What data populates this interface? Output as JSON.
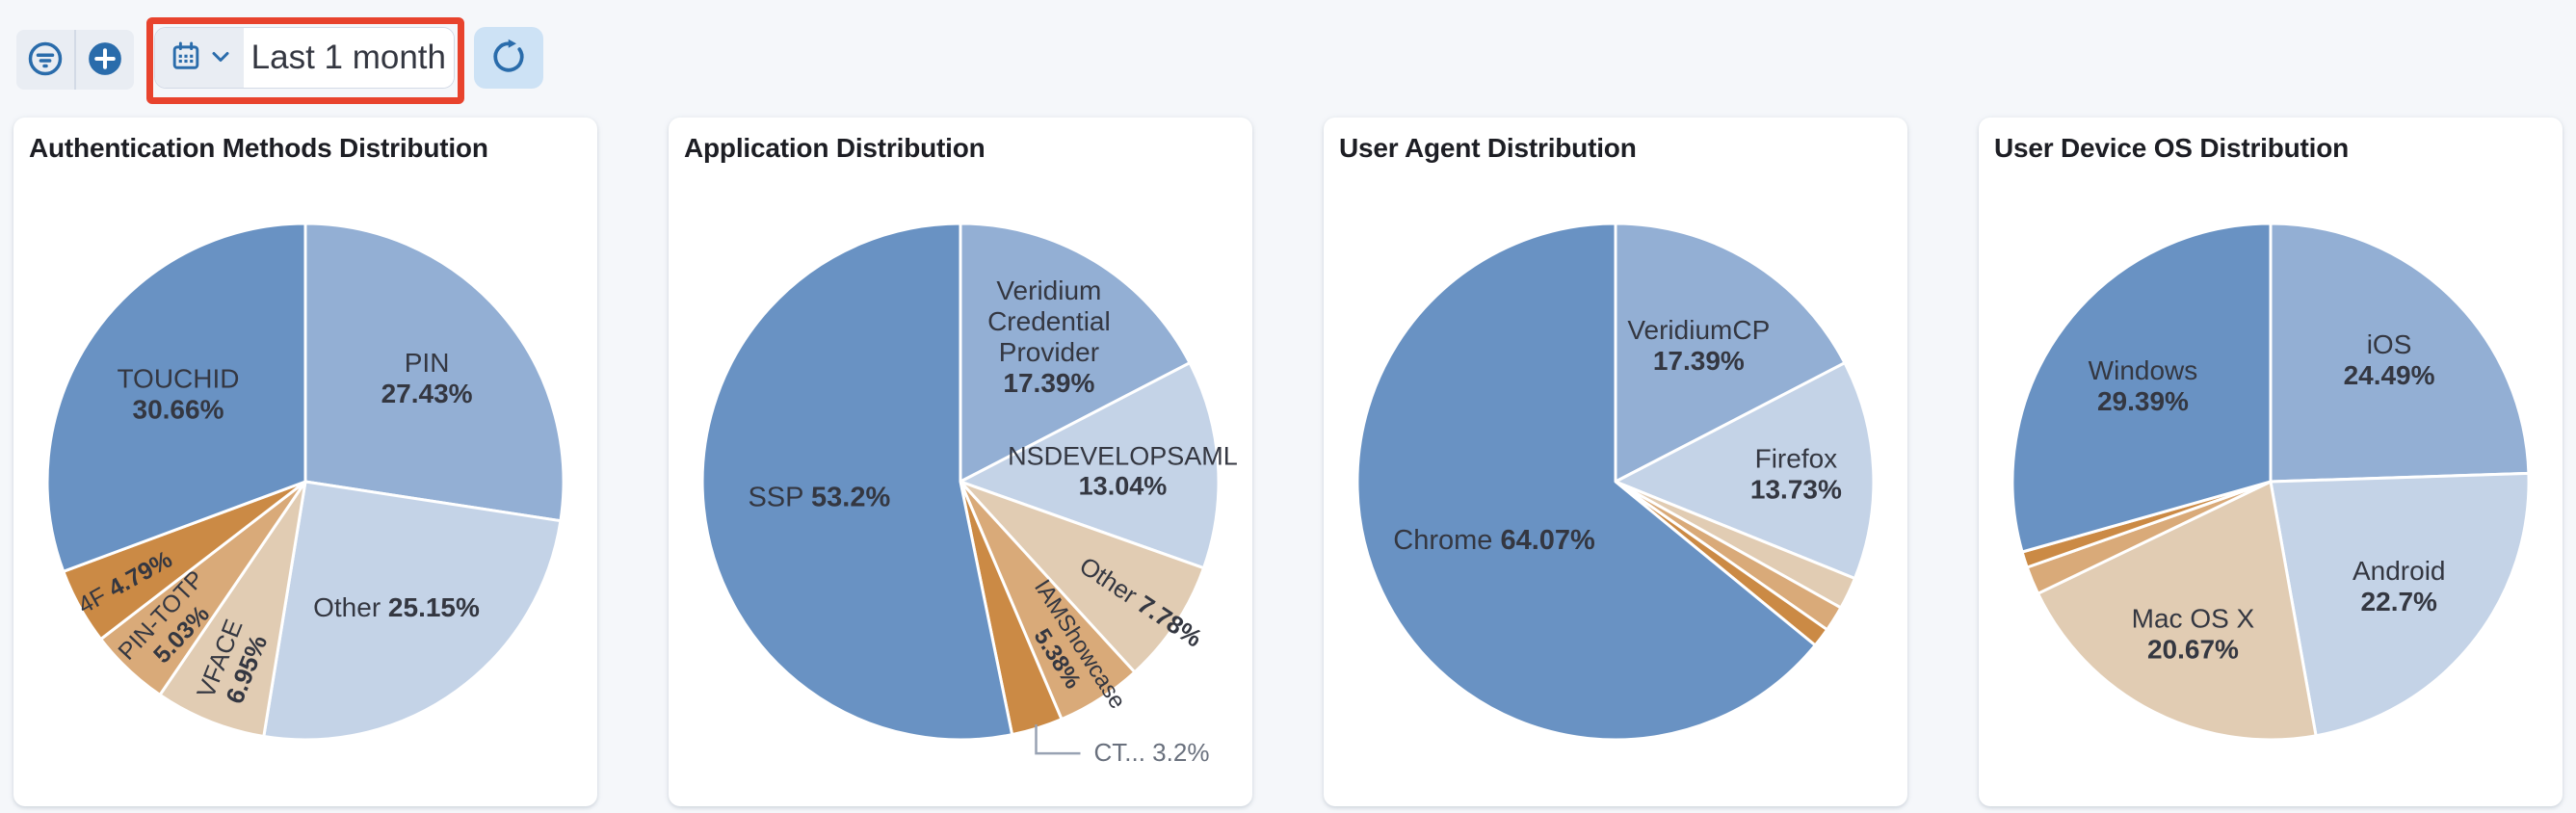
{
  "page": {
    "background": "#f5f7fa",
    "accent_blue": "#2a6cab",
    "annotation_color": "#e8432d"
  },
  "toolbar": {
    "filter_button": {
      "icon": "filter-circle-icon"
    },
    "add_filter_button": {
      "icon": "plus-circle-icon"
    },
    "date_picker": {
      "quick_select_icon": "calendar-icon",
      "chevron_icon": "chevron-down-icon",
      "value": "Last 1 month"
    },
    "refresh_button": {
      "icon": "refresh-icon"
    }
  },
  "chart_data": [
    {
      "type": "pie",
      "title": "Authentication Methods Distribution",
      "legend": false,
      "start_angle_deg": 0,
      "direction": "clockwise",
      "slices": [
        {
          "name": "PIN",
          "value": 27.43,
          "display": "27.43%",
          "color": "#93afd4",
          "label": {
            "mode": "inside",
            "rFrac": 0.62,
            "stacked": true,
            "rotate": false,
            "fontSize": 28
          }
        },
        {
          "name": "Other",
          "value": 25.15,
          "display": "25.15%",
          "color": "#c4d3e7",
          "label": {
            "mode": "inside",
            "rFrac": 0.6,
            "stacked": false,
            "rotate": false,
            "fontSize": 28
          }
        },
        {
          "name": "VFACE",
          "value": 6.95,
          "display": "6.95%",
          "color": "#e1ccb3",
          "label": {
            "mode": "inside",
            "rFrac": 0.76,
            "stacked": true,
            "rotate": true,
            "fontSize": 26
          }
        },
        {
          "name": "PIN-TOTP",
          "value": 5.03,
          "display": "5.03%",
          "color": "#d9aa79",
          "label": {
            "mode": "inside",
            "rFrac": 0.76,
            "stacked": true,
            "rotate": true,
            "fontSize": 25
          }
        },
        {
          "name": "4F",
          "value": 4.79,
          "display": "4.79%",
          "color": "#cb8a45",
          "label": {
            "mode": "inside",
            "rFrac": 0.8,
            "stacked": false,
            "rotate": true,
            "fontSize": 25
          }
        },
        {
          "name": "TOUCHID",
          "value": 30.66,
          "display": "30.66%",
          "color": "#6992c3",
          "label": {
            "mode": "inside",
            "rFrac": 0.6,
            "stacked": true,
            "rotate": false,
            "fontSize": 28
          }
        }
      ]
    },
    {
      "type": "pie",
      "title": "Application Distribution",
      "legend": false,
      "start_angle_deg": 0,
      "direction": "clockwise",
      "slices": [
        {
          "name": "Veridium Credential Provider",
          "lines": [
            "Veridium",
            "Credential",
            "Provider"
          ],
          "value": 17.39,
          "display": "17.39%",
          "color": "#93afd4",
          "label": {
            "mode": "inside",
            "rFrac": 0.66,
            "stacked": true,
            "rotate": false,
            "fontSize": 28
          }
        },
        {
          "name": "NSDEVELOPSAML",
          "value": 13.04,
          "display": "13.04%",
          "color": "#c4d3e7",
          "label": {
            "mode": "inside",
            "rFrac": 0.63,
            "stacked": true,
            "rotate": false,
            "fontSize": 27
          }
        },
        {
          "name": "Other",
          "value": 7.78,
          "display": "7.78%",
          "color": "#e1ccb3",
          "label": {
            "mode": "inside",
            "rFrac": 0.84,
            "stacked": false,
            "rotate": true,
            "fontSize": 26
          }
        },
        {
          "name": "IAMShowcase",
          "value": 5.38,
          "display": "5.38%",
          "color": "#d9aa79",
          "label": {
            "mode": "inside",
            "rFrac": 0.78,
            "stacked": true,
            "rotate": true,
            "fontSize": 24
          }
        },
        {
          "name": "CT...",
          "value": 3.2,
          "display": "3.2%",
          "color": "#cb8a45",
          "label": {
            "mode": "outside",
            "fontSize": 26
          }
        },
        {
          "name": "SSP",
          "value": 53.2,
          "display": "53.2%",
          "color": "#6992c3",
          "label": {
            "mode": "inside",
            "rFrac": 0.55,
            "stacked": false,
            "rotate": false,
            "fontSize": 29
          }
        }
      ]
    },
    {
      "type": "pie",
      "title": "User Agent Distribution",
      "legend": false,
      "start_angle_deg": 0,
      "direction": "clockwise",
      "slices": [
        {
          "name": "VeridiumCP",
          "value": 17.39,
          "display": "17.39%",
          "color": "#93afd4",
          "label": {
            "mode": "inside",
            "rFrac": 0.62,
            "stacked": true,
            "rotate": false,
            "fontSize": 28
          }
        },
        {
          "name": "Firefox",
          "value": 13.73,
          "display": "13.73%",
          "color": "#c4d3e7",
          "label": {
            "mode": "inside",
            "rFrac": 0.7,
            "stacked": true,
            "rotate": false,
            "fontSize": 28
          }
        },
        {
          "name": "",
          "value": 2.0,
          "display": "",
          "color": "#e1ccb3",
          "label": {
            "mode": "none"
          }
        },
        {
          "name": "",
          "value": 1.6,
          "display": "",
          "color": "#d9aa79",
          "label": {
            "mode": "none"
          }
        },
        {
          "name": "",
          "value": 1.21,
          "display": "",
          "color": "#cb8a45",
          "label": {
            "mode": "none"
          }
        },
        {
          "name": "Chrome",
          "value": 64.07,
          "display": "64.07%",
          "color": "#6992c3",
          "label": {
            "mode": "inside",
            "rFrac": 0.52,
            "stacked": false,
            "rotate": false,
            "fontSize": 29
          }
        }
      ]
    },
    {
      "type": "pie",
      "title": "User Device OS Distribution",
      "legend": false,
      "start_angle_deg": 0,
      "direction": "clockwise",
      "slices": [
        {
          "name": "iOS",
          "value": 24.49,
          "display": "24.49%",
          "color": "#93afd4",
          "label": {
            "mode": "inside",
            "rFrac": 0.66,
            "stacked": true,
            "rotate": false,
            "fontSize": 28
          }
        },
        {
          "name": "Android",
          "value": 22.7,
          "display": "22.7%",
          "color": "#c4d3e7",
          "label": {
            "mode": "inside",
            "rFrac": 0.64,
            "stacked": true,
            "rotate": false,
            "fontSize": 28
          }
        },
        {
          "name": "Mac OS X",
          "value": 20.67,
          "display": "20.67%",
          "color": "#e1ccb3",
          "label": {
            "mode": "inside",
            "rFrac": 0.66,
            "stacked": true,
            "rotate": false,
            "fontSize": 28
          }
        },
        {
          "name": "",
          "value": 1.75,
          "display": "",
          "color": "#d9aa79",
          "label": {
            "mode": "none"
          }
        },
        {
          "name": "",
          "value": 1.0,
          "display": "",
          "color": "#cb8a45",
          "label": {
            "mode": "none"
          }
        },
        {
          "name": "Windows",
          "value": 29.39,
          "display": "29.39%",
          "color": "#6992c3",
          "label": {
            "mode": "inside",
            "rFrac": 0.62,
            "stacked": true,
            "rotate": false,
            "fontSize": 28
          }
        }
      ]
    }
  ]
}
